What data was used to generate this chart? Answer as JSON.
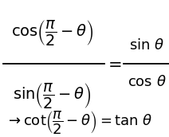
{
  "line1_num": "$\\cos\\!\\left(\\dfrac{\\pi}{2} - \\theta\\right)$",
  "line1_den": "$\\sin\\!\\left(\\dfrac{\\pi}{2} - \\theta\\right)$",
  "rhs_num": "$\\sin\\,\\theta$",
  "rhs_den": "$\\cos\\,\\theta$",
  "line2": "$\\rightarrow \\cot\\!\\left(\\dfrac{\\pi}{2} - \\theta\\right) = \\tan\\,\\theta$",
  "bg_color": "#ffffff",
  "text_color": "#000000",
  "fontsize_lhs": 14,
  "fontsize_rhs": 13,
  "fontsize_line2": 13
}
